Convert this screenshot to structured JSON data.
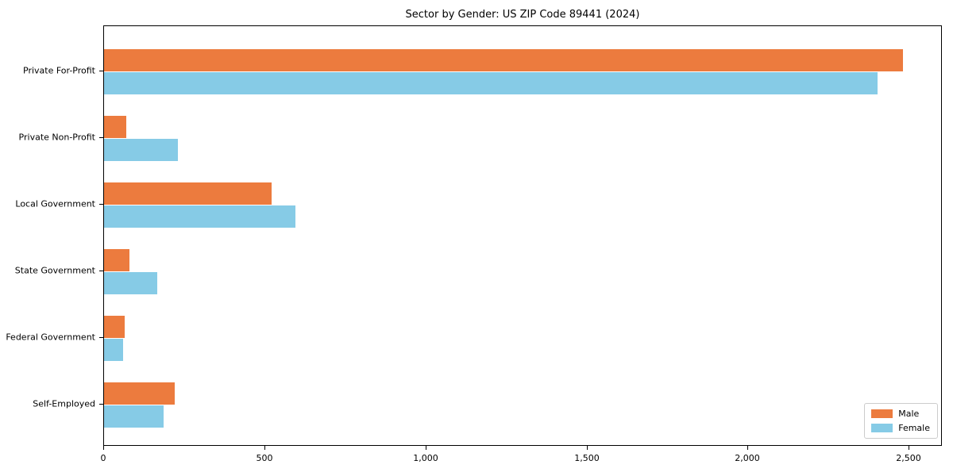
{
  "chart_data": {
    "type": "bar",
    "orientation": "horizontal",
    "title": "Sector by Gender: US ZIP Code 89441 (2024)",
    "categories": [
      "Private For-Profit",
      "Private Non-Profit",
      "Local Government",
      "State Government",
      "Federal Government",
      "Self-Employed"
    ],
    "series": [
      {
        "name": "Male",
        "color": "#EC7B3E",
        "values": [
          2480,
          70,
          520,
          80,
          65,
          220
        ]
      },
      {
        "name": "Female",
        "color": "#86CBE6",
        "values": [
          2400,
          230,
          595,
          165,
          60,
          185
        ]
      }
    ],
    "xlabel": "",
    "ylabel": "",
    "xlim": [
      0,
      2603
    ],
    "x_tick_values": [
      0,
      500,
      1000,
      1500,
      2000,
      2500
    ],
    "x_tick_labels": [
      "0",
      "500",
      "1,000",
      "1,500",
      "2,000",
      "2,500"
    ],
    "grid": false,
    "legend": {
      "position": "lower-right"
    },
    "colors": {
      "spine": "#000000",
      "legend_border": "#cccccc",
      "background": "#ffffff"
    }
  }
}
